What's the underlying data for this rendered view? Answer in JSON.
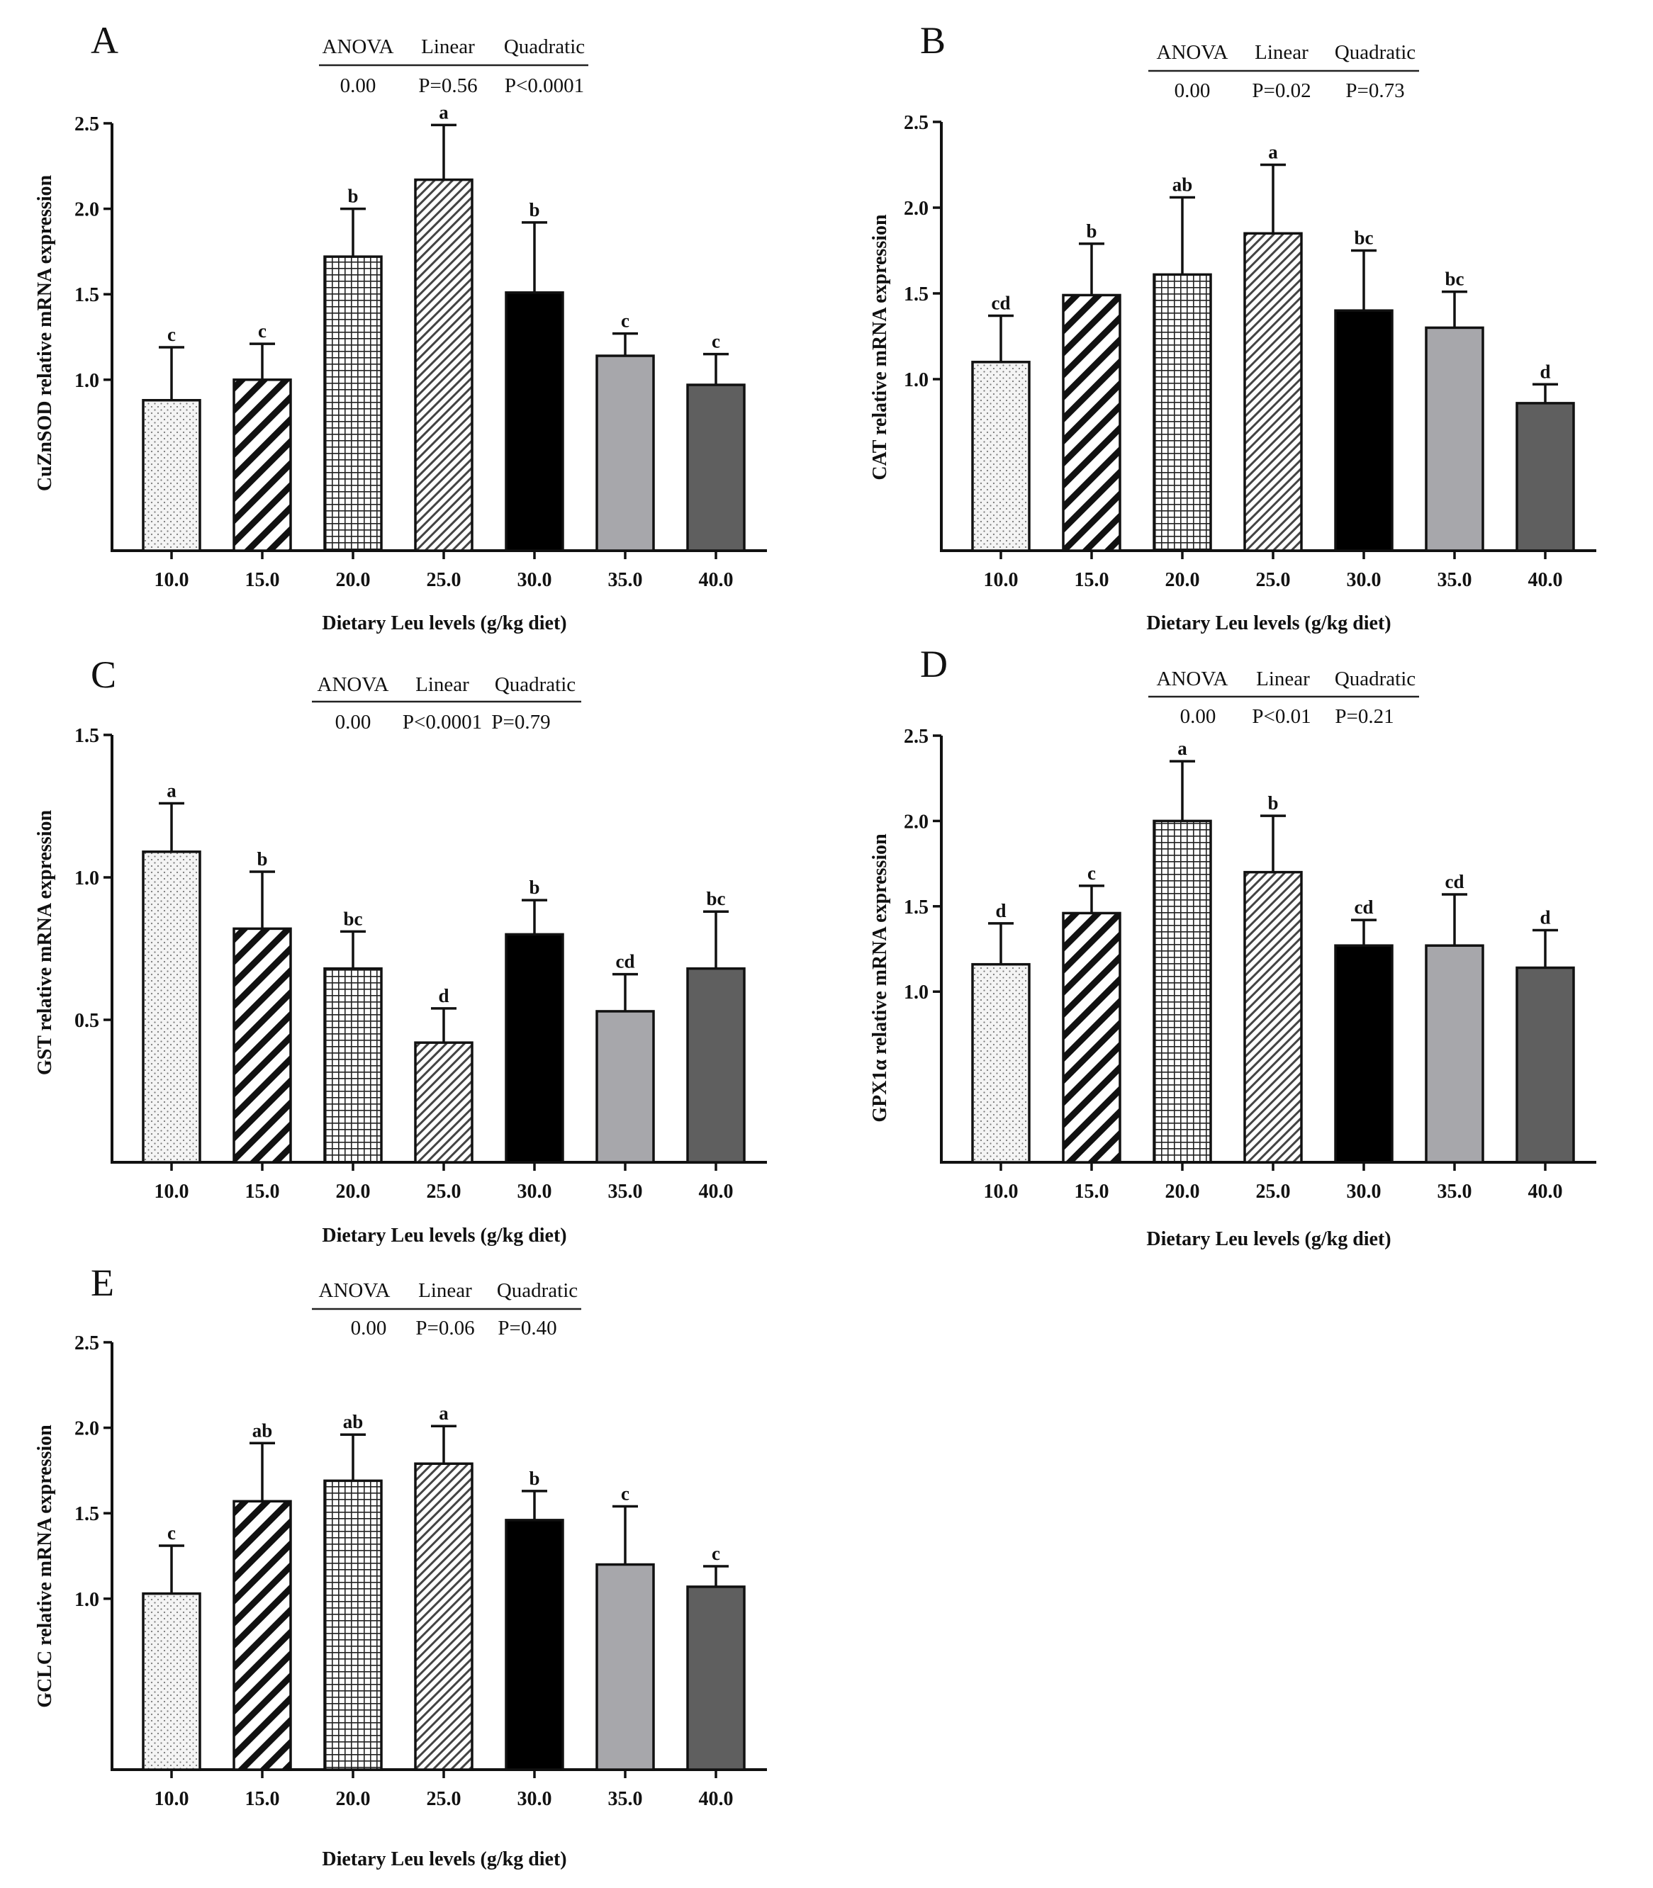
{
  "figure": {
    "shared": {
      "categories": [
        "10.0",
        "15.0",
        "20.0",
        "25.0",
        "30.0",
        "35.0",
        "40.0"
      ],
      "xlabel": "Dietary Leu levels (g/kg diet)",
      "stats_headers": [
        "ANOVA",
        "Linear",
        "Quadratic"
      ],
      "bar_styles": [
        {
          "pattern": "dots",
          "fill": "#f3f3f3"
        },
        {
          "pattern": "diagonal-thick",
          "fill": "#ffffff"
        },
        {
          "pattern": "grid",
          "fill": "#ffffff"
        },
        {
          "pattern": "diagonal-thin",
          "fill": "#ffffff"
        },
        {
          "pattern": "solid",
          "fill": "#000000"
        },
        {
          "pattern": "solid",
          "fill": "#a7a7ab"
        },
        {
          "pattern": "solid",
          "fill": "#5f5f5f"
        }
      ]
    }
  },
  "chart_data": [
    {
      "type": "bar",
      "panel": "A",
      "ylabel": "CuZnSOD relative mRNA expression",
      "ylim": [
        0,
        2.5
      ],
      "yticks": [
        "1.0",
        "1.5",
        "2.0",
        "2.5"
      ],
      "values": [
        0.88,
        1.0,
        1.72,
        2.17,
        1.51,
        1.14,
        0.97
      ],
      "errors": [
        0.31,
        0.21,
        0.28,
        0.32,
        0.41,
        0.13,
        0.18
      ],
      "sig_letters": [
        "c",
        "c",
        "b",
        "a",
        "b",
        "c",
        "c"
      ],
      "stats_values": [
        "0.00",
        "P=0.56",
        "P<0.0001"
      ]
    },
    {
      "type": "bar",
      "panel": "B",
      "ylabel": "CAT relative mRNA expression",
      "ylim": [
        0,
        2.5
      ],
      "yticks": [
        "1.0",
        "1.5",
        "2.0",
        "2.5"
      ],
      "values": [
        1.1,
        1.49,
        1.61,
        1.85,
        1.4,
        1.3,
        0.86
      ],
      "errors": [
        0.27,
        0.3,
        0.45,
        0.4,
        0.35,
        0.21,
        0.11
      ],
      "sig_letters": [
        "cd",
        "b",
        "ab",
        "a",
        "bc",
        "bc",
        "d"
      ],
      "stats_values": [
        "0.00",
        "P=0.02",
        "P=0.73"
      ]
    },
    {
      "type": "bar",
      "panel": "C",
      "ylabel": "GST relative mRNA expression",
      "ylim": [
        0,
        1.5
      ],
      "yticks": [
        "0.5",
        "1.0",
        "1.5"
      ],
      "values": [
        1.09,
        0.82,
        0.68,
        0.42,
        0.8,
        0.53,
        0.68
      ],
      "errors": [
        0.17,
        0.2,
        0.13,
        0.12,
        0.12,
        0.13,
        0.2
      ],
      "sig_letters": [
        "a",
        "b",
        "bc",
        "d",
        "b",
        "cd",
        "bc"
      ],
      "stats_values": [
        "0.00",
        "P<0.0001",
        "P=0.79"
      ]
    },
    {
      "type": "bar",
      "panel": "D",
      "ylabel": "GPX1α relative mRNA expression",
      "ylim": [
        0,
        2.5
      ],
      "yticks": [
        "1.0",
        "1.5",
        "2.0",
        "2.5"
      ],
      "values": [
        1.16,
        1.46,
        2.0,
        1.7,
        1.27,
        1.27,
        1.14
      ],
      "errors": [
        0.24,
        0.16,
        0.35,
        0.33,
        0.15,
        0.3,
        0.22
      ],
      "sig_letters": [
        "d",
        "c",
        "a",
        "b",
        "cd",
        "cd",
        "d"
      ],
      "stats_values": [
        "0.00",
        "P<0.01",
        "P=0.21"
      ]
    },
    {
      "type": "bar",
      "panel": "E",
      "ylabel": "GCLC relative mRNA expression",
      "ylim": [
        0,
        2.5
      ],
      "yticks": [
        "1.0",
        "1.5",
        "2.0",
        "2.5"
      ],
      "values": [
        1.03,
        1.57,
        1.69,
        1.79,
        1.46,
        1.2,
        1.07
      ],
      "errors": [
        0.28,
        0.34,
        0.27,
        0.22,
        0.17,
        0.34,
        0.12
      ],
      "sig_letters": [
        "c",
        "ab",
        "ab",
        "a",
        "b",
        "c",
        "c"
      ],
      "stats_values": [
        "0.00",
        "P=0.06",
        "P=0.40"
      ]
    }
  ]
}
